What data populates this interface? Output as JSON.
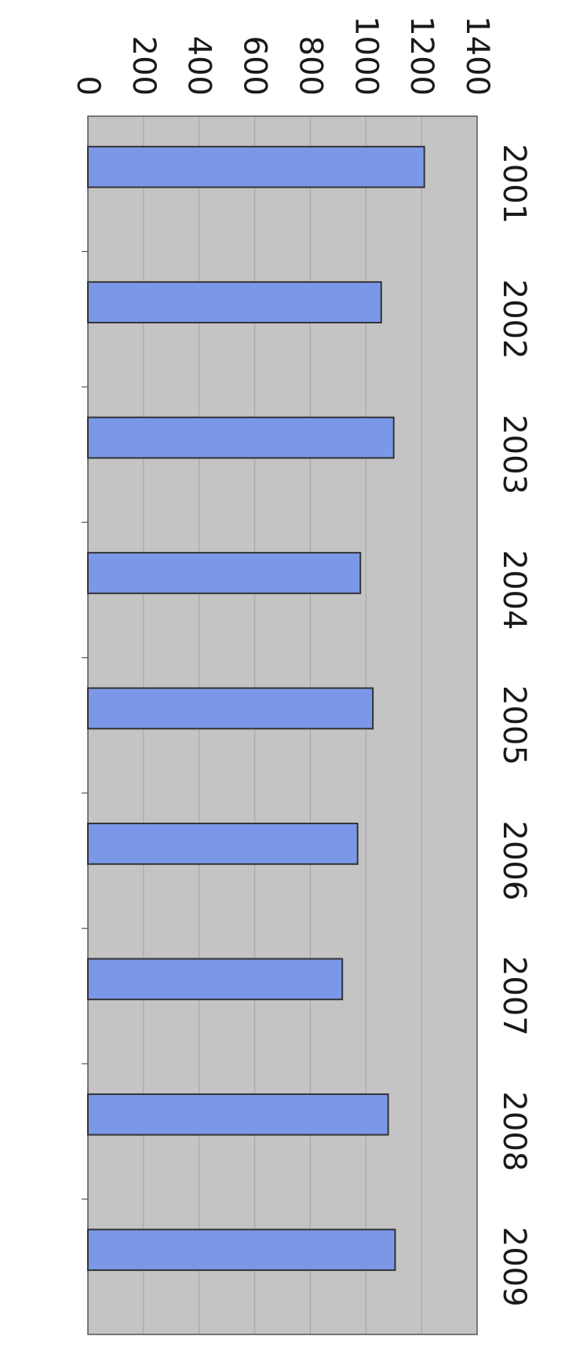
{
  "chart_data": {
    "type": "bar",
    "orientation": "horizontal",
    "categories": [
      "2001",
      "2002",
      "2003",
      "2004",
      "2005",
      "2006",
      "2007",
      "2008",
      "2009"
    ],
    "values": [
      1210,
      1055,
      1100,
      980,
      1025,
      970,
      915,
      1080,
      1105
    ],
    "xlim": [
      0,
      1400
    ],
    "x_ticks": [
      "0",
      "200",
      "400",
      "600",
      "800",
      "1000",
      "1200",
      "1400"
    ],
    "title": "",
    "xlabel": "",
    "ylabel": "",
    "grid": true,
    "legend": "none",
    "colors": {
      "bar_fill": "#7b98e8",
      "bar_stroke": "#333333",
      "plot_background": "#c4c4c4",
      "gridline": "#a8a8a8",
      "axis": "#555555"
    }
  }
}
